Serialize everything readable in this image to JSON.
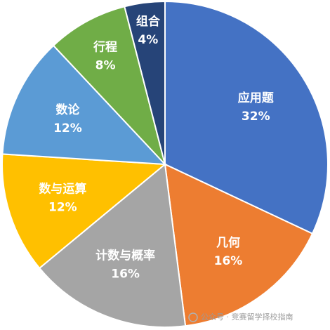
{
  "chart_data": {
    "type": "pie",
    "categories": [
      "应用题",
      "几何",
      "计数与概率",
      "数与运算",
      "数论",
      "行程",
      "组合"
    ],
    "values": [
      32,
      16,
      16,
      12,
      12,
      8,
      4
    ],
    "value_labels": [
      "32%",
      "16%",
      "16%",
      "12%",
      "12%",
      "8%",
      "4%"
    ],
    "colors": [
      "#4472c4",
      "#ed7d31",
      "#a5a5a5",
      "#ffc000",
      "#5b9bd5",
      "#70ad47",
      "#264478"
    ],
    "watermark": "公众号 · 竞赛留学择校指南"
  }
}
